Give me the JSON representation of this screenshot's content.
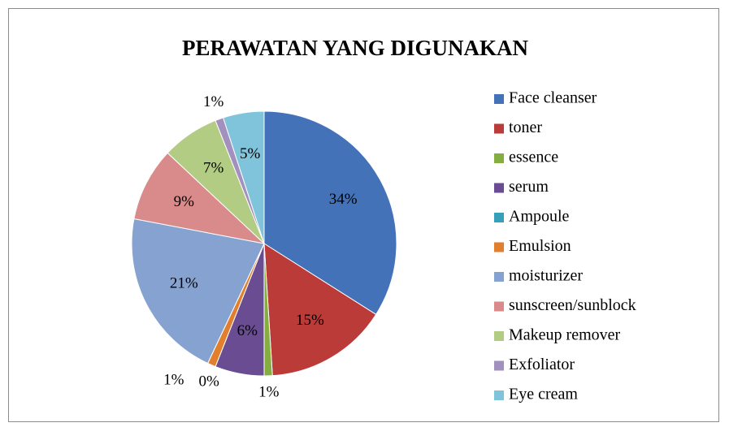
{
  "chart_data": {
    "type": "pie",
    "title": "PERAWATAN YANG DIGUNAKAN",
    "categories": [
      "Face cleanser",
      "toner",
      "essence",
      "serum",
      "Ampoule",
      "Emulsion",
      "moisturizer",
      "sunscreen/sunblock",
      "Makeup remover",
      "Exfoliator",
      "Eye cream"
    ],
    "values": [
      34,
      15,
      1,
      6,
      0,
      1,
      21,
      9,
      7,
      1,
      5
    ],
    "value_labels": [
      "34%",
      "15%",
      "1%",
      "6%",
      "0%",
      "1%",
      "21%",
      "9%",
      "7%",
      "1%",
      "5%"
    ],
    "colors": [
      "#4372b8",
      "#bb3b38",
      "#86ad3f",
      "#6a4c92",
      "#36a0b9",
      "#e27f2c",
      "#86a2d0",
      "#d88b8a",
      "#b2cc83",
      "#a291be",
      "#80c4dc"
    ],
    "legend": "right"
  }
}
